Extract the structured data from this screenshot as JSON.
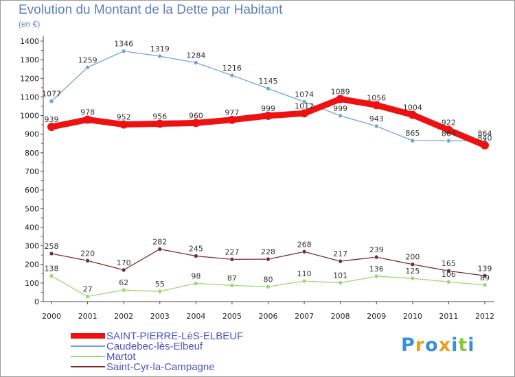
{
  "chart_data": {
    "type": "line",
    "title": "Evolution du Montant de la Dette par Habitant",
    "ylabel": "(en €)",
    "x": [
      "2000",
      "2001",
      "2002",
      "2003",
      "2004",
      "2005",
      "2006",
      "2007",
      "2008",
      "2009",
      "2010",
      "2011",
      "2012"
    ],
    "ylim": [
      0,
      1400
    ],
    "yticks": [
      0,
      100,
      200,
      300,
      400,
      500,
      600,
      700,
      800,
      900,
      1000,
      1100,
      1200,
      1300,
      1400
    ],
    "grid": false,
    "legend_position": "bottom-left",
    "series": [
      {
        "name": "SAINT-PIERRE-LèS-ELBEUF",
        "color": "#ee1111",
        "values": [
          939,
          978,
          952,
          956,
          960,
          977,
          999,
          1012,
          1089,
          1056,
          1004,
          922,
          840
        ]
      },
      {
        "name": "Caudebec-lès-Elbeuf",
        "color": "#6fa3d6",
        "values": [
          1077,
          1259,
          1346,
          1319,
          1284,
          1216,
          1145,
          1074,
          999,
          943,
          865,
          864,
          864
        ]
      },
      {
        "name": "Martot",
        "color": "#9ad66f",
        "values": [
          138,
          27,
          62,
          55,
          98,
          87,
          80,
          110,
          101,
          136,
          125,
          106,
          89
        ]
      },
      {
        "name": "Saint-Cyr-la-Campagne",
        "color": "#7a2a2a",
        "values": [
          258,
          220,
          170,
          282,
          245,
          227,
          228,
          268,
          217,
          239,
          200,
          165,
          139
        ]
      }
    ]
  },
  "logo": {
    "letters": [
      "P",
      "r",
      "o",
      "x",
      "i",
      "t",
      "i"
    ],
    "colors": [
      "#3a8fd8",
      "#e8a020",
      "#3a8fd8",
      "#e8a020",
      "#3a8fd8",
      "#8cc63f",
      "#3a8fd8"
    ]
  }
}
